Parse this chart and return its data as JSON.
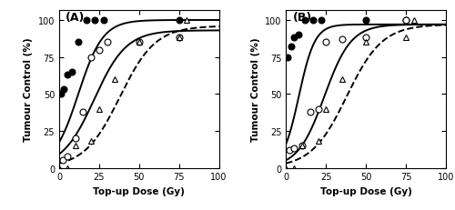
{
  "panel_A": {
    "label": "(A)",
    "filled_circle": {
      "x": [
        1,
        3,
        5,
        8,
        12,
        17,
        22,
        28,
        75
      ],
      "y": [
        50,
        53,
        63,
        65,
        85,
        100,
        100,
        100,
        100
      ]
    },
    "open_circle": {
      "x": [
        2,
        5,
        10,
        15,
        20,
        25,
        30,
        50,
        75
      ],
      "y": [
        5,
        8,
        20,
        38,
        75,
        80,
        85,
        85,
        88
      ]
    },
    "triangle": {
      "x": [
        0,
        5,
        10,
        20,
        25,
        35,
        50,
        75,
        80
      ],
      "y": [
        0,
        0,
        15,
        18,
        40,
        60,
        85,
        88,
        100
      ]
    },
    "curve_filled": {
      "x0": 12,
      "k": 0.13,
      "ymax": 100
    },
    "curve_open": {
      "x0": 22,
      "k": 0.1,
      "ymax": 93
    },
    "curve_triangle": {
      "x0": 38,
      "k": 0.09,
      "ymax": 96
    }
  },
  "panel_B": {
    "label": "(B)",
    "filled_circle": {
      "x": [
        1,
        3,
        5,
        8,
        12,
        17,
        22,
        50,
        75
      ],
      "y": [
        75,
        82,
        88,
        90,
        100,
        100,
        100,
        100,
        100
      ]
    },
    "open_circle": {
      "x": [
        2,
        5,
        10,
        15,
        20,
        25,
        35,
        50,
        75
      ],
      "y": [
        12,
        13,
        15,
        38,
        40,
        85,
        87,
        88,
        100
      ]
    },
    "triangle": {
      "x": [
        0,
        5,
        10,
        20,
        25,
        35,
        50,
        75,
        80
      ],
      "y": [
        0,
        0,
        15,
        18,
        40,
        60,
        85,
        88,
        100
      ]
    },
    "curve_filled": {
      "x0": 8,
      "k": 0.2,
      "ymax": 97
    },
    "curve_open": {
      "x0": 24,
      "k": 0.12,
      "ymax": 97
    },
    "curve_triangle": {
      "x0": 38,
      "k": 0.09,
      "ymax": 97
    }
  },
  "xlim": [
    0,
    100
  ],
  "ylim": [
    0,
    107
  ],
  "xticks": [
    0,
    25,
    50,
    75,
    100
  ],
  "yticks": [
    0,
    25,
    50,
    75,
    100
  ],
  "xlabel": "Top-up Dose (Gy)",
  "ylabel": "Tumour Control (%)",
  "marker_size": 5,
  "linewidth": 1.4
}
